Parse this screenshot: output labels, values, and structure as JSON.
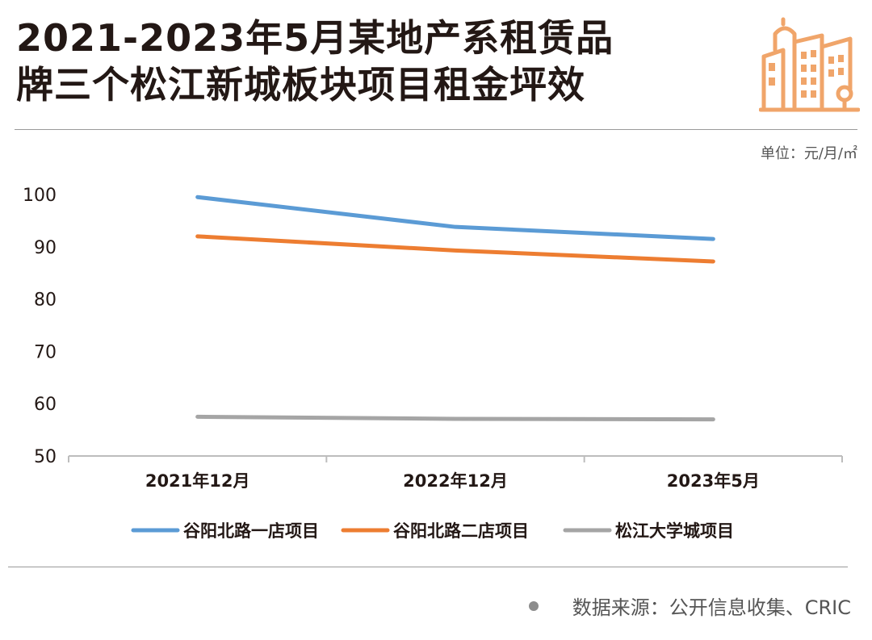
{
  "title": {
    "line1": "2021-2023年5月某地产系租赁品",
    "line2": "牌三个松江新城板块项目租金坪效"
  },
  "logo": {
    "icon": "city-buildings-icon",
    "color": "#F0A56A"
  },
  "unit_label": "单位：元/月/㎡",
  "source_label": "数据来源：公开信息收集、CRIC",
  "chart_data": {
    "type": "line",
    "categories": [
      "2021年12月",
      "2022年12月",
      "2023年5月"
    ],
    "ylim": [
      50,
      100
    ],
    "yticks": [
      "50",
      "60",
      "70",
      "80",
      "90",
      "100"
    ],
    "grid": false,
    "legend_position": "bottom",
    "series": [
      {
        "name": "谷阳北路一店项目",
        "color": "#5B9BD5",
        "values": [
          99.5,
          93.8,
          91.5
        ]
      },
      {
        "name": "谷阳北路二店项目",
        "color": "#ED7D31",
        "values": [
          92.0,
          89.3,
          87.2
        ]
      },
      {
        "name": "松江大学城项目",
        "color": "#A5A5A5",
        "values": [
          57.5,
          57.1,
          57.0
        ]
      }
    ]
  }
}
